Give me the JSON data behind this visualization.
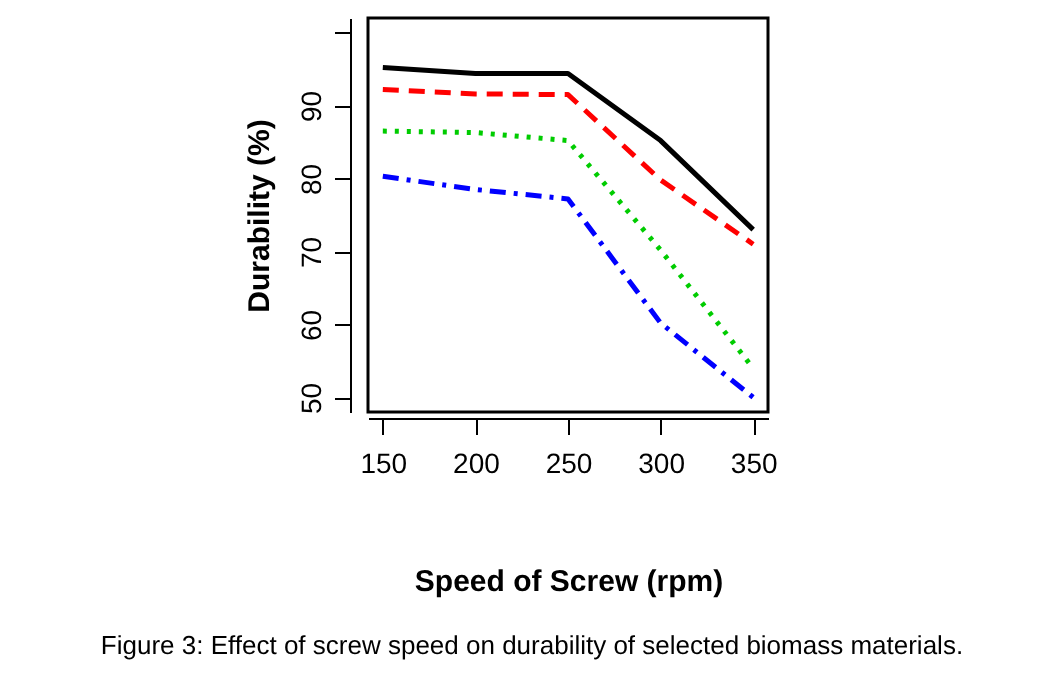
{
  "chart_data": {
    "type": "line",
    "x": [
      150,
      200,
      250,
      300,
      350
    ],
    "series": [
      {
        "color": "#000000",
        "line_style": "solid",
        "values": [
          95.2,
          94.4,
          94.4,
          85.2,
          73
        ]
      },
      {
        "color": "#ff0000",
        "line_style": "dashed",
        "values": [
          92.2,
          91.6,
          91.5,
          79.8,
          71
        ]
      },
      {
        "color": "#00cc00",
        "line_style": "dotted",
        "values": [
          86.5,
          86.3,
          85.2,
          70.2,
          54
        ]
      },
      {
        "color": "#0000ff",
        "line_style": "dashdot",
        "values": [
          80.3,
          78.5,
          77.2,
          60.2,
          50
        ]
      }
    ],
    "xlabel": "Speed of Screw (rpm)",
    "ylabel": "Durability (%)",
    "xlim": [
      142,
      358
    ],
    "xticks": [
      150,
      200,
      250,
      300,
      350
    ],
    "ylim": [
      48,
      102
    ],
    "yticks": [
      50,
      60,
      70,
      80,
      90,
      {
        "value": 100,
        "label": null
      }
    ],
    "grid": false,
    "marker": "none",
    "annotations": [
      "Figure 3: Effect of screw speed on durability of selected biomass materials."
    ]
  }
}
